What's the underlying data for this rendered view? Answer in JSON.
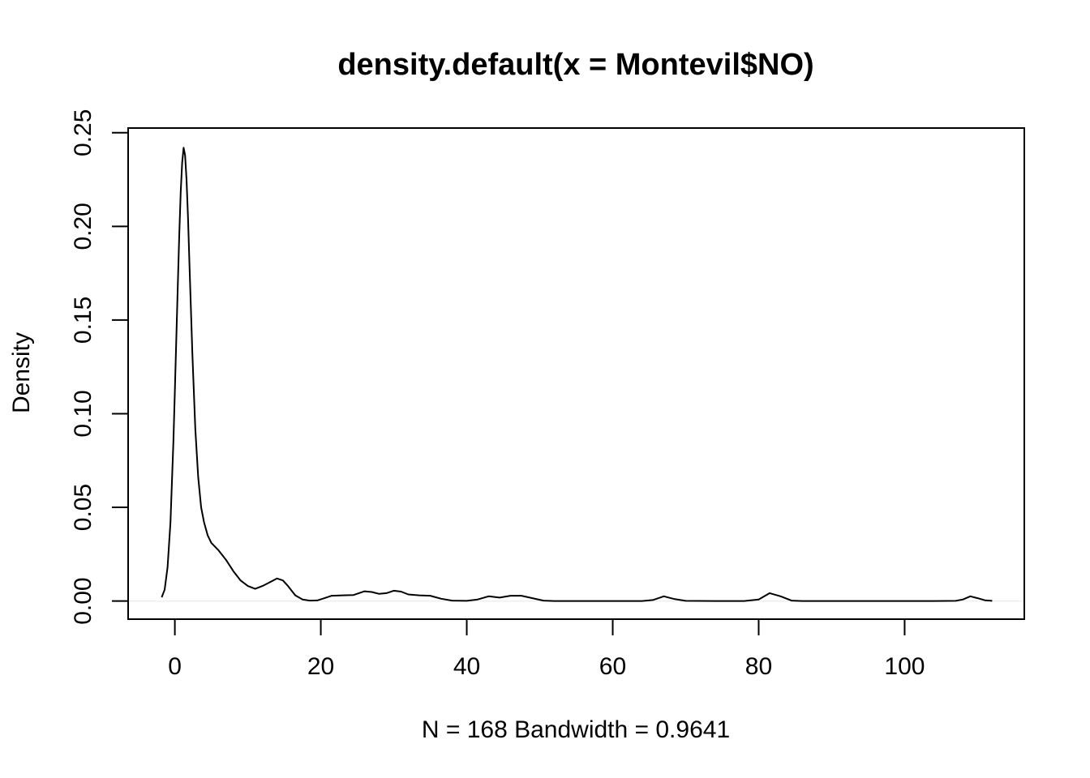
{
  "chart_data": {
    "type": "line",
    "title": "density.default(x = Montevil$NO)",
    "xlabel": "N = 168   Bandwidth = 0.9641",
    "ylabel": "Density",
    "xlim": [
      -6.4,
      116.4
    ],
    "ylim": [
      -0.0097,
      0.2525
    ],
    "x_ticks": [
      0,
      20,
      40,
      60,
      80,
      100
    ],
    "y_ticks": [
      0.0,
      0.05,
      0.1,
      0.15,
      0.2,
      0.25
    ],
    "x_tick_labels": [
      "0",
      "20",
      "40",
      "60",
      "80",
      "100"
    ],
    "y_tick_labels": [
      "0.00",
      "0.05",
      "0.10",
      "0.15",
      "0.20",
      "0.25"
    ],
    "grid": false,
    "zero_line": true,
    "series": [
      {
        "x": [
          -1.8,
          -1.4,
          -1.0,
          -0.6,
          -0.2,
          0.0,
          0.2,
          0.4,
          0.6,
          0.8,
          1.0,
          1.2,
          1.4,
          1.6,
          1.8,
          2.0,
          2.4,
          2.8,
          3.2,
          3.6,
          4.0,
          4.5,
          5.0,
          5.5,
          6.0,
          7.0,
          8.0,
          9.0,
          10.0,
          11.0,
          12.0,
          13.0,
          14.0,
          14.8,
          15.5,
          16.5,
          17.5,
          18.5,
          19.5,
          20.5,
          21.5,
          23.0,
          24.5,
          26.0,
          27.0,
          28.0,
          29.0,
          30.0,
          31.0,
          32.0,
          33.5,
          35.0,
          36.5,
          38.0,
          40.0,
          41.5,
          43.0,
          44.5,
          46.0,
          47.5,
          49.0,
          50.5,
          52.0,
          56.0,
          60.0,
          64.0,
          65.5,
          67.0,
          68.5,
          70.0,
          74.0,
          78.0,
          80.0,
          81.5,
          83.0,
          84.5,
          86.0,
          90.0,
          95.0,
          100.0,
          104.0,
          107.0,
          108.0,
          109.0,
          110.0,
          111.0,
          112.0
        ],
        "y": [
          0.002,
          0.006,
          0.018,
          0.042,
          0.085,
          0.112,
          0.14,
          0.168,
          0.195,
          0.218,
          0.234,
          0.242,
          0.238,
          0.225,
          0.205,
          0.18,
          0.132,
          0.092,
          0.066,
          0.05,
          0.042,
          0.035,
          0.031,
          0.029,
          0.027,
          0.022,
          0.016,
          0.011,
          0.008,
          0.0065,
          0.008,
          0.01,
          0.012,
          0.011,
          0.008,
          0.003,
          0.0008,
          0.0002,
          0.0003,
          0.0015,
          0.0028,
          0.003,
          0.0032,
          0.0052,
          0.0048,
          0.0038,
          0.0042,
          0.0055,
          0.005,
          0.0035,
          0.003,
          0.0028,
          0.0012,
          0.0002,
          0.0001,
          0.0008,
          0.0025,
          0.0018,
          0.0028,
          0.0028,
          0.0015,
          0.0002,
          0.0,
          0.0,
          0.0,
          0.0,
          0.0005,
          0.0025,
          0.001,
          0.0001,
          0.0,
          0.0,
          0.0008,
          0.0042,
          0.0025,
          0.0002,
          0.0,
          0.0,
          0.0,
          0.0,
          0.0,
          0.0001,
          0.0008,
          0.0025,
          0.0015,
          0.0004,
          0.0001
        ]
      }
    ]
  }
}
